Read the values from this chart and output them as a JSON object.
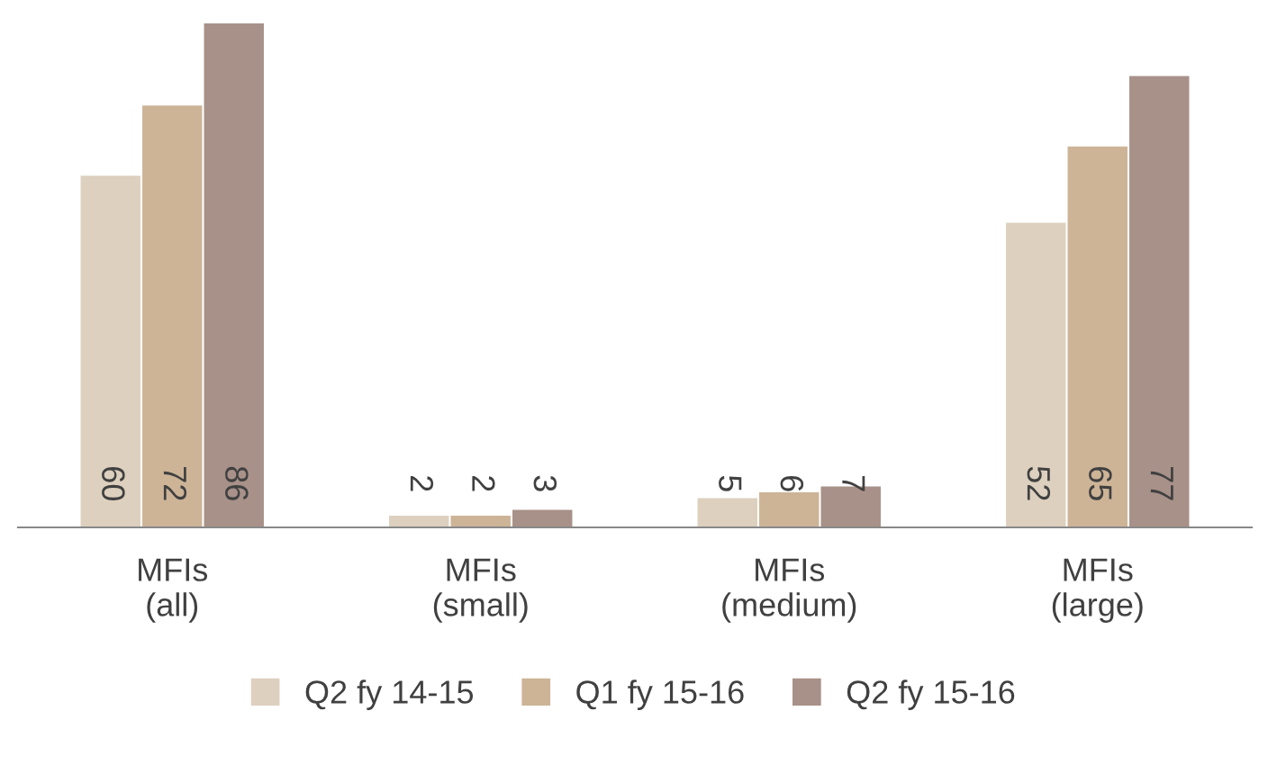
{
  "chart_data": {
    "type": "bar",
    "categories": [
      "MFIs\n(all)",
      "MFIs\n(small)",
      "MFIs\n(medium)",
      "MFIs\n(large)"
    ],
    "series": [
      {
        "name": "Q2 fy 14-15",
        "color": "#ddd0bf",
        "values": [
          60,
          2,
          5,
          52
        ]
      },
      {
        "name": "Q1 fy 15-16",
        "color": "#cdb497",
        "values": [
          72,
          2,
          6,
          65
        ]
      },
      {
        "name": "Q2 fy 15-16",
        "color": "#a89189",
        "values": [
          86,
          3,
          7,
          77
        ]
      }
    ],
    "data_labels": true,
    "legend": "bottom",
    "grid": false
  }
}
